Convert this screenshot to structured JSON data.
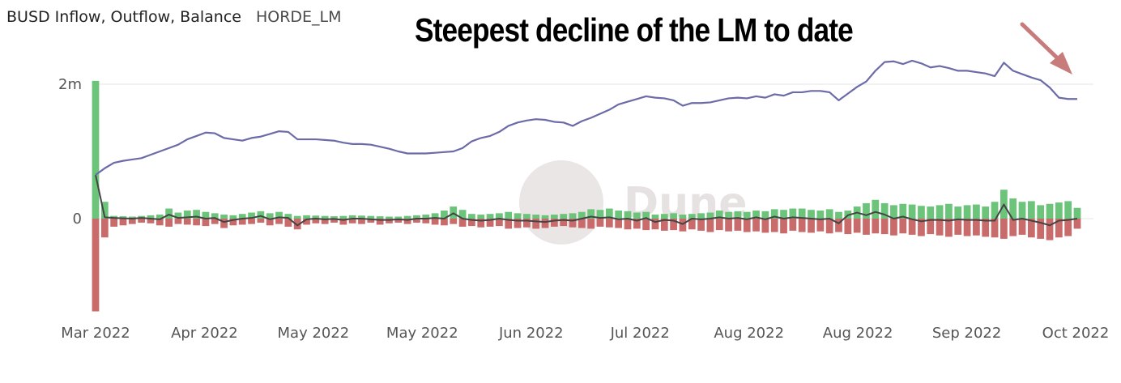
{
  "header": {
    "title": "BUSD Inflow, Outflow, Balance",
    "subtitle": "HORDE_LM"
  },
  "annotation": {
    "text": "Steepest decline of the LM to date"
  },
  "watermark": "Dune",
  "colors": {
    "balance": "#6b6ba8",
    "inflow": "#6cc47a",
    "outflow": "#c96b6b",
    "net": "#444444",
    "arrow": "#c77b7b",
    "grid": "#e6e6e6"
  },
  "chart_data": {
    "type": "bar",
    "ylim": [
      -1400000,
      2400000
    ],
    "y_tick_labels": [
      {
        "value": 2000000,
        "label": "2m"
      },
      {
        "value": 0,
        "label": "0"
      }
    ],
    "x_tick_labels": [
      "Mar 2022",
      "Apr 2022",
      "May 2022",
      "May 2022",
      "Jun 2022",
      "Jul 2022",
      "Aug 2022",
      "Aug 2022",
      "Sep 2022",
      "Oct 2022"
    ],
    "balance": {
      "type": "line",
      "x": [
        0,
        2,
        4,
        6,
        8,
        10,
        12,
        14,
        16,
        18,
        20,
        22,
        24,
        26,
        28,
        30,
        32,
        34,
        36,
        38,
        40,
        42,
        44,
        46,
        48,
        50,
        52,
        54,
        56,
        58,
        60,
        62,
        64,
        66,
        68,
        70,
        72,
        74,
        76,
        78,
        80,
        82,
        84,
        86,
        88,
        90,
        92,
        94,
        96,
        98,
        100,
        102,
        104,
        106,
        108,
        110,
        112,
        114,
        116,
        118,
        120,
        122,
        124,
        126,
        128,
        130,
        132,
        134,
        136,
        138,
        140,
        142,
        144,
        146,
        148,
        150,
        152,
        154,
        156,
        158,
        160,
        162,
        164,
        166,
        168,
        170,
        172,
        174,
        176,
        178,
        180,
        182,
        184,
        186,
        188,
        190,
        192,
        194,
        196,
        198,
        200,
        202,
        204,
        206,
        208,
        210,
        212,
        214
      ],
      "values": [
        650000,
        750000,
        830000,
        860000,
        880000,
        900000,
        950000,
        1000000,
        1050000,
        1100000,
        1180000,
        1230000,
        1280000,
        1270000,
        1200000,
        1180000,
        1160000,
        1200000,
        1220000,
        1260000,
        1300000,
        1290000,
        1180000,
        1180000,
        1180000,
        1170000,
        1160000,
        1130000,
        1110000,
        1110000,
        1100000,
        1070000,
        1040000,
        1000000,
        970000,
        970000,
        970000,
        980000,
        990000,
        1000000,
        1050000,
        1150000,
        1200000,
        1230000,
        1290000,
        1380000,
        1430000,
        1460000,
        1480000,
        1470000,
        1440000,
        1430000,
        1380000,
        1450000,
        1500000,
        1560000,
        1620000,
        1700000,
        1740000,
        1780000,
        1820000,
        1800000,
        1790000,
        1760000,
        1680000,
        1720000,
        1720000,
        1730000,
        1760000,
        1790000,
        1800000,
        1790000,
        1820000,
        1800000,
        1850000,
        1830000,
        1880000,
        1880000,
        1900000,
        1900000,
        1880000,
        1760000,
        1860000,
        1960000,
        2040000,
        2200000,
        2330000,
        2340000,
        2300000,
        2350000,
        2310000,
        2250000,
        2270000,
        2240000,
        2200000,
        2200000,
        2180000,
        2160000,
        2120000,
        2320000,
        2200000,
        2150000,
        2100000,
        2060000,
        1950000,
        1800000,
        1780000,
        1780000
      ]
    },
    "inflow": {
      "type": "bar",
      "x": [
        0,
        2,
        4,
        6,
        8,
        10,
        12,
        14,
        16,
        18,
        20,
        22,
        24,
        26,
        28,
        30,
        32,
        34,
        36,
        38,
        40,
        42,
        44,
        46,
        48,
        50,
        52,
        54,
        56,
        58,
        60,
        62,
        64,
        66,
        68,
        70,
        72,
        74,
        76,
        78,
        80,
        82,
        84,
        86,
        88,
        90,
        92,
        94,
        96,
        98,
        100,
        102,
        104,
        106,
        108,
        110,
        112,
        114,
        116,
        118,
        120,
        122,
        124,
        126,
        128,
        130,
        132,
        134,
        136,
        138,
        140,
        142,
        144,
        146,
        148,
        150,
        152,
        154,
        156,
        158,
        160,
        162,
        164,
        166,
        168,
        170,
        172,
        174,
        176,
        178,
        180,
        182,
        184,
        186,
        188,
        190,
        192,
        194,
        196,
        198,
        200,
        202,
        204,
        206,
        208,
        210,
        212,
        214
      ],
      "values": [
        2050000,
        250000,
        40000,
        35000,
        30000,
        40000,
        50000,
        60000,
        150000,
        90000,
        120000,
        130000,
        100000,
        80000,
        60000,
        50000,
        70000,
        90000,
        110000,
        80000,
        100000,
        70000,
        40000,
        50000,
        45000,
        40000,
        35000,
        40000,
        50000,
        45000,
        40000,
        35000,
        30000,
        30000,
        40000,
        50000,
        60000,
        80000,
        120000,
        180000,
        130000,
        70000,
        60000,
        70000,
        80000,
        100000,
        80000,
        70000,
        60000,
        50000,
        60000,
        70000,
        80000,
        100000,
        140000,
        130000,
        150000,
        120000,
        110000,
        90000,
        100000,
        60000,
        70000,
        80000,
        60000,
        70000,
        80000,
        90000,
        120000,
        100000,
        110000,
        100000,
        120000,
        110000,
        140000,
        130000,
        150000,
        150000,
        130000,
        120000,
        140000,
        100000,
        120000,
        180000,
        230000,
        280000,
        230000,
        200000,
        220000,
        210000,
        190000,
        180000,
        200000,
        220000,
        180000,
        200000,
        210000,
        180000,
        250000,
        430000,
        300000,
        250000,
        260000,
        200000,
        220000,
        240000,
        260000,
        160000
      ]
    },
    "outflow": {
      "type": "bar",
      "x": [
        0,
        2,
        4,
        6,
        8,
        10,
        12,
        14,
        16,
        18,
        20,
        22,
        24,
        26,
        28,
        30,
        32,
        34,
        36,
        38,
        40,
        42,
        44,
        46,
        48,
        50,
        52,
        54,
        56,
        58,
        60,
        62,
        64,
        66,
        68,
        70,
        72,
        74,
        76,
        78,
        80,
        82,
        84,
        86,
        88,
        90,
        92,
        94,
        96,
        98,
        100,
        102,
        104,
        106,
        108,
        110,
        112,
        114,
        116,
        118,
        120,
        122,
        124,
        126,
        128,
        130,
        132,
        134,
        136,
        138,
        140,
        142,
        144,
        146,
        148,
        150,
        152,
        154,
        156,
        158,
        160,
        162,
        164,
        166,
        168,
        170,
        172,
        174,
        176,
        178,
        180,
        182,
        184,
        186,
        188,
        190,
        192,
        194,
        196,
        198,
        200,
        202,
        204,
        206,
        208,
        210,
        212,
        214
      ],
      "values": [
        -1380000,
        -280000,
        -120000,
        -100000,
        -80000,
        -60000,
        -70000,
        -100000,
        -120000,
        -80000,
        -90000,
        -100000,
        -110000,
        -80000,
        -140000,
        -100000,
        -90000,
        -80000,
        -60000,
        -100000,
        -80000,
        -120000,
        -160000,
        -90000,
        -70000,
        -80000,
        -60000,
        -90000,
        -70000,
        -80000,
        -60000,
        -90000,
        -70000,
        -60000,
        -80000,
        -60000,
        -70000,
        -90000,
        -100000,
        -80000,
        -120000,
        -110000,
        -130000,
        -120000,
        -110000,
        -150000,
        -140000,
        -130000,
        -150000,
        -140000,
        -120000,
        -110000,
        -130000,
        -140000,
        -150000,
        -120000,
        -130000,
        -140000,
        -160000,
        -150000,
        -170000,
        -160000,
        -180000,
        -170000,
        -190000,
        -160000,
        -180000,
        -200000,
        -170000,
        -190000,
        -180000,
        -200000,
        -190000,
        -210000,
        -200000,
        -220000,
        -180000,
        -200000,
        -210000,
        -190000,
        -220000,
        -200000,
        -230000,
        -210000,
        -240000,
        -220000,
        -230000,
        -250000,
        -220000,
        -240000,
        -260000,
        -230000,
        -250000,
        -270000,
        -240000,
        -260000,
        -250000,
        -270000,
        -280000,
        -300000,
        -260000,
        -240000,
        -280000,
        -300000,
        -320000,
        -280000,
        -260000,
        -150000
      ]
    },
    "net": {
      "type": "line",
      "x": [
        0,
        2,
        4,
        6,
        8,
        10,
        12,
        14,
        16,
        18,
        20,
        22,
        24,
        26,
        28,
        30,
        32,
        34,
        36,
        38,
        40,
        42,
        44,
        46,
        48,
        50,
        52,
        54,
        56,
        58,
        60,
        62,
        64,
        66,
        68,
        70,
        72,
        74,
        76,
        78,
        80,
        82,
        84,
        86,
        88,
        90,
        92,
        94,
        96,
        98,
        100,
        102,
        104,
        106,
        108,
        110,
        112,
        114,
        116,
        118,
        120,
        122,
        124,
        126,
        128,
        130,
        132,
        134,
        136,
        138,
        140,
        142,
        144,
        146,
        148,
        150,
        152,
        154,
        156,
        158,
        160,
        162,
        164,
        166,
        168,
        170,
        172,
        174,
        176,
        178,
        180,
        182,
        184,
        186,
        188,
        190,
        192,
        194,
        196,
        198,
        200,
        202,
        204,
        206,
        208,
        210,
        212,
        214
      ],
      "values": [
        650000,
        20000,
        10000,
        5000,
        0,
        10000,
        0,
        -10000,
        60000,
        10000,
        20000,
        30000,
        0,
        10000,
        -50000,
        -20000,
        0,
        10000,
        40000,
        -10000,
        20000,
        10000,
        -100000,
        -10000,
        0,
        -10000,
        -5000,
        -20000,
        0,
        0,
        -10000,
        -20000,
        -20000,
        -10000,
        -20000,
        0,
        0,
        10000,
        0,
        80000,
        0,
        -20000,
        -30000,
        -20000,
        0,
        -20000,
        -30000,
        -30000,
        -40000,
        -50000,
        -30000,
        -20000,
        -30000,
        0,
        30000,
        10000,
        20000,
        -10000,
        0,
        -30000,
        10000,
        -50000,
        -20000,
        -30000,
        -80000,
        0,
        -10000,
        0,
        20000,
        0,
        10000,
        -10000,
        20000,
        -10000,
        30000,
        0,
        20000,
        10000,
        0,
        -10000,
        0,
        -70000,
        50000,
        90000,
        50000,
        100000,
        60000,
        0,
        30000,
        -10000,
        -40000,
        -20000,
        -20000,
        -30000,
        -10000,
        -20000,
        -20000,
        -30000,
        -30000,
        210000,
        -20000,
        0,
        -30000,
        -60000,
        -100000,
        -30000,
        -20000,
        0
      ]
    }
  }
}
